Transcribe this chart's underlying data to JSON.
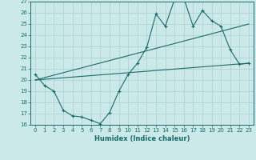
{
  "title": "",
  "xlabel": "Humidex (Indice chaleur)",
  "xlim": [
    -0.5,
    23.5
  ],
  "ylim": [
    16,
    27
  ],
  "yticks": [
    16,
    17,
    18,
    19,
    20,
    21,
    22,
    23,
    24,
    25,
    26,
    27
  ],
  "xticks": [
    0,
    1,
    2,
    3,
    4,
    5,
    6,
    7,
    8,
    9,
    10,
    11,
    12,
    13,
    14,
    15,
    16,
    17,
    18,
    19,
    20,
    21,
    22,
    23
  ],
  "bg_color": "#cce9e9",
  "grid_color": "#aacfcf",
  "line_color": "#1a6b6b",
  "line_width": 0.8,
  "marker": "+",
  "marker_size": 3,
  "series_main": {
    "x": [
      0,
      1,
      2,
      3,
      4,
      5,
      6,
      7,
      8,
      9,
      10,
      11,
      12,
      13,
      14,
      15,
      16,
      17,
      18,
      19,
      20,
      21,
      22,
      23
    ],
    "y": [
      20.5,
      19.5,
      19.0,
      17.3,
      16.8,
      16.7,
      16.4,
      16.1,
      17.1,
      19.0,
      20.5,
      21.5,
      22.9,
      25.9,
      24.8,
      27.2,
      27.3,
      24.8,
      26.2,
      25.3,
      24.8,
      22.7,
      21.4,
      21.5
    ]
  },
  "series_line1": {
    "x": [
      0,
      23
    ],
    "y": [
      20.0,
      21.5
    ]
  },
  "series_line2": {
    "x": [
      0,
      23
    ],
    "y": [
      20.0,
      25.0
    ]
  }
}
